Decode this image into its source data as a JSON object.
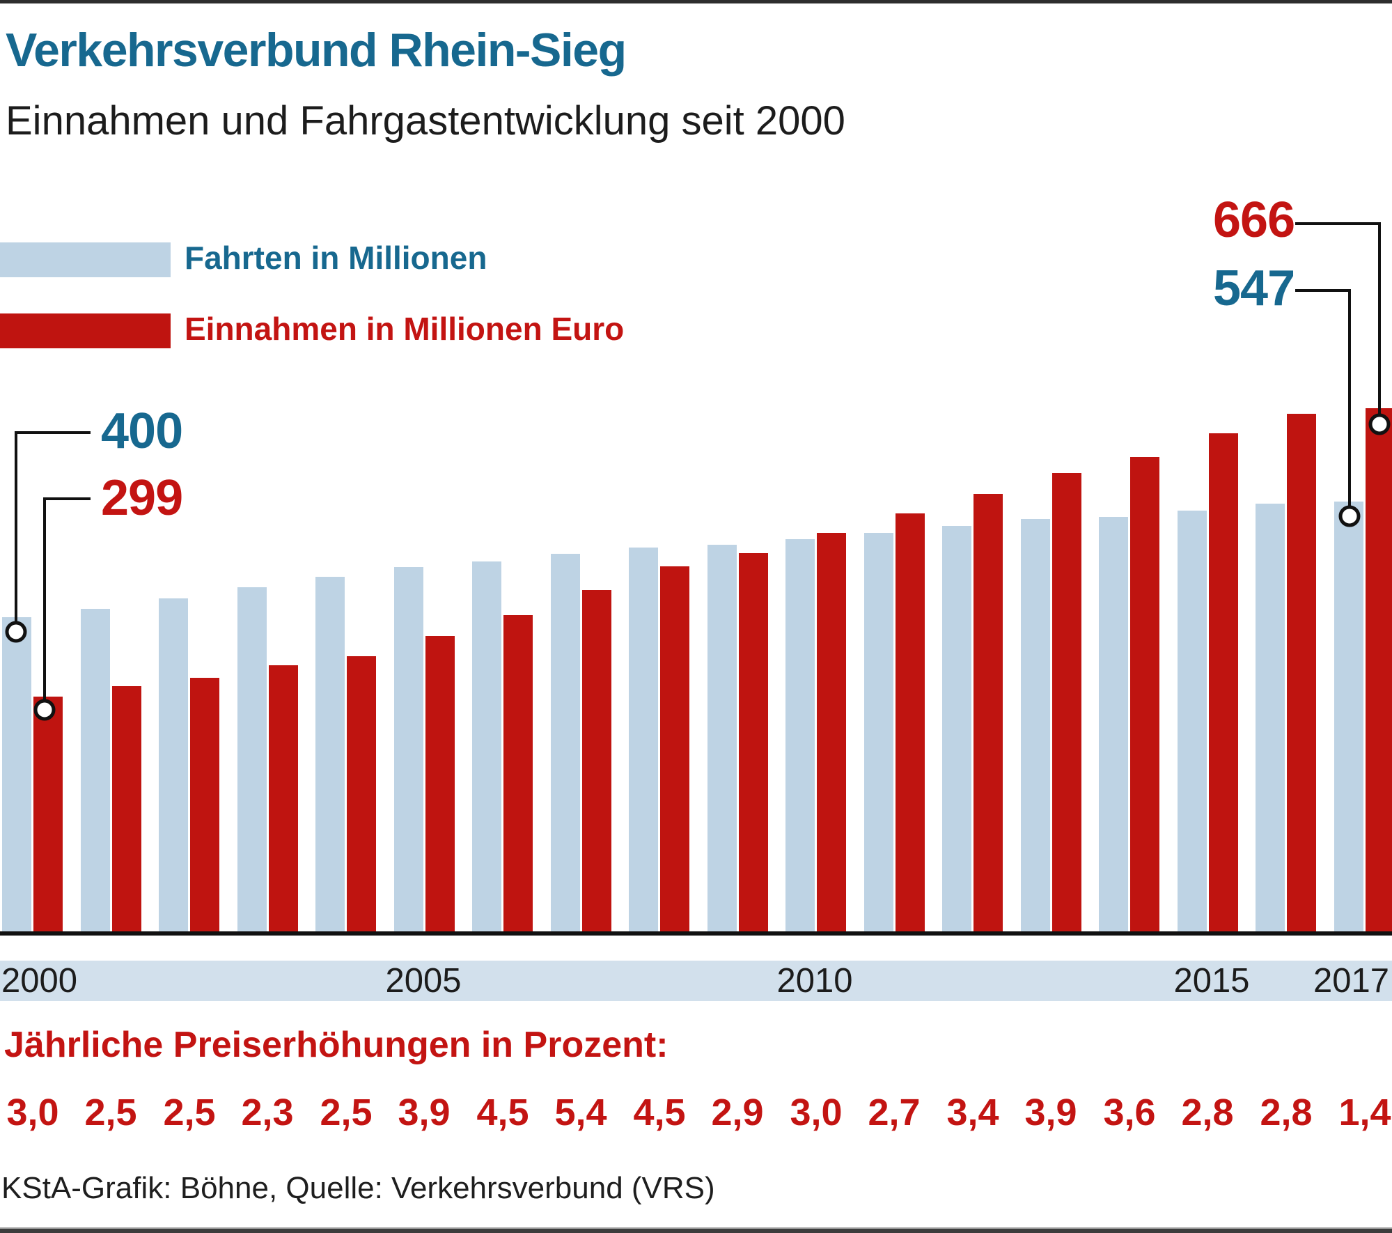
{
  "header": {
    "title": "Verkehrsverbund Rhein-Sieg",
    "subtitle": "Einnahmen und Fahrgastentwicklung seit 2000"
  },
  "legend": [
    {
      "label": "Fahrten in Millionen",
      "color": "#bed3e4"
    },
    {
      "label": "Einnahmen in Millionen Euro",
      "color": "#bf1410"
    }
  ],
  "callouts": {
    "rides_2000": "400",
    "revenue_2000": "299",
    "revenue_2017": "666",
    "rides_2017": "547"
  },
  "xaxis": {
    "labels": [
      "2000",
      "2005",
      "2010",
      "2015",
      "2017"
    ]
  },
  "chart_data": {
    "type": "bar",
    "title": "Einnahmen und Fahrgastentwicklung seit 2000",
    "categories": [
      "2000",
      "2001",
      "2002",
      "2003",
      "2004",
      "2005",
      "2006",
      "2007",
      "2008",
      "2009",
      "2010",
      "2011",
      "2012",
      "2013",
      "2014",
      "2015",
      "2016",
      "2017"
    ],
    "series": [
      {
        "name": "Fahrten in Millionen",
        "color": "#bed3e4",
        "values": [
          400,
          411,
          424,
          438,
          451,
          464,
          471,
          481,
          489,
          492,
          499,
          507,
          516,
          525,
          528,
          536,
          545,
          547
        ]
      },
      {
        "name": "Einnahmen in Millionen Euro",
        "color": "#bf1410",
        "values": [
          299,
          312,
          323,
          339,
          350,
          376,
          403,
          435,
          465,
          482,
          507,
          532,
          557,
          584,
          604,
          634,
          659,
          666
        ]
      }
    ],
    "ylim": [
      0,
      700
    ],
    "grid": false,
    "legend_position": "top-left",
    "labeled_points": {
      "2000": {
        "Fahrten in Millionen": 400,
        "Einnahmen in Millionen Euro": 299
      },
      "2017": {
        "Fahrten in Millionen": 547,
        "Einnahmen in Millionen Euro": 666
      }
    }
  },
  "price_increases": {
    "heading": "Jährliche Preiserhöhungen in Prozent:",
    "values": [
      "3,0",
      "2,5",
      "2,5",
      "2,3",
      "2,5",
      "3,9",
      "4,5",
      "5,4",
      "4,5",
      "2,9",
      "3,0",
      "2,7",
      "3,4",
      "3,9",
      "3,6",
      "2,8",
      "2,8",
      "1,4"
    ]
  },
  "footer": {
    "source": "KStA-Grafik: Böhne, Quelle: Verkehrsverbund (VRS)"
  },
  "colors": {
    "rides_bar": "#bed3e4",
    "revenue_bar": "#bf1410",
    "accent_teal": "#17688f",
    "accent_red": "#c31412",
    "axis_band": "#d2e0ec"
  }
}
